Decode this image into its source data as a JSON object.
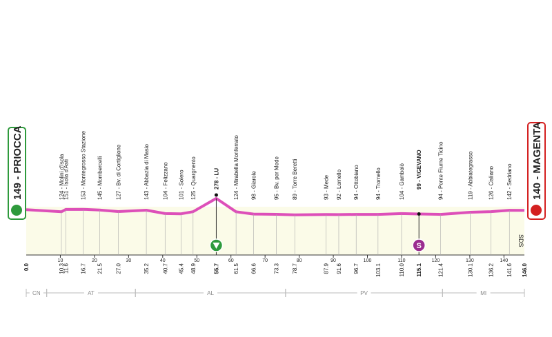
{
  "start": "149 - PRIOCCA",
  "finish": "140 - MAGENTA",
  "start_km": "0.0",
  "finish_km": "146.0",
  "total_km": 146,
  "waypoints": [
    {
      "name": "124 - Molini d'Isola",
      "km": "10.3"
    },
    {
      "name": "151 - Isola d'Asti",
      "km": "11.6"
    },
    {
      "name": "153 - Montegrosso Stazione",
      "km": "16.7"
    },
    {
      "name": "145 - Mombercelli",
      "km": "21.5"
    },
    {
      "name": "127 - Bv. di Cortiglione",
      "km": "27.0"
    },
    {
      "name": "143 - Abbazia di Masio",
      "km": "35.2"
    },
    {
      "name": "104 - Felizzano",
      "km": "40.7"
    },
    {
      "name": "101 - Solero",
      "km": "45.4"
    },
    {
      "name": "125 - Quargnento",
      "km": "48.9"
    },
    {
      "name": "278 - LU",
      "km": "55.7",
      "bold": true
    },
    {
      "name": "124 - Mirabella Monferrato",
      "km": "61.5"
    },
    {
      "name": "98 - Giarole",
      "km": "66.6"
    },
    {
      "name": "95 - Bv. per Mede",
      "km": "73.3"
    },
    {
      "name": "89 - Torre Beretti",
      "km": "78.7"
    },
    {
      "name": "93 - Mede",
      "km": "87.9"
    },
    {
      "name": "92 - Lomello",
      "km": "91.6"
    },
    {
      "name": "94 - Ottobiano",
      "km": "96.7"
    },
    {
      "name": "94 - Tromello",
      "km": "103.1"
    },
    {
      "name": "104 - Gambolò",
      "km": "110.0"
    },
    {
      "name": "99 - VIGEVANO",
      "km": "115.1",
      "bold": true
    },
    {
      "name": "94 - Ponte Fiume Ticino",
      "km": "121.4"
    },
    {
      "name": "119 - Abbiategrasso",
      "km": "130.1"
    },
    {
      "name": "126 - Cisliano",
      "km": "136.2"
    },
    {
      "name": "142 - Sedriano",
      "km": "141.6"
    }
  ],
  "km_ticks": [
    10,
    20,
    30,
    40,
    50,
    60,
    70,
    80,
    90,
    100,
    110,
    120,
    130,
    140
  ],
  "regions": [
    {
      "label": "CN",
      "from": 0,
      "to": 6
    },
    {
      "label": "AT",
      "from": 6,
      "to": 32
    },
    {
      "label": "AL",
      "from": 32,
      "to": 76
    },
    {
      "label": "PV",
      "from": 76,
      "to": 122
    },
    {
      "label": "MI",
      "from": 122,
      "to": 146
    }
  ],
  "sprint_icon": "S",
  "sds": "SDS"
}
